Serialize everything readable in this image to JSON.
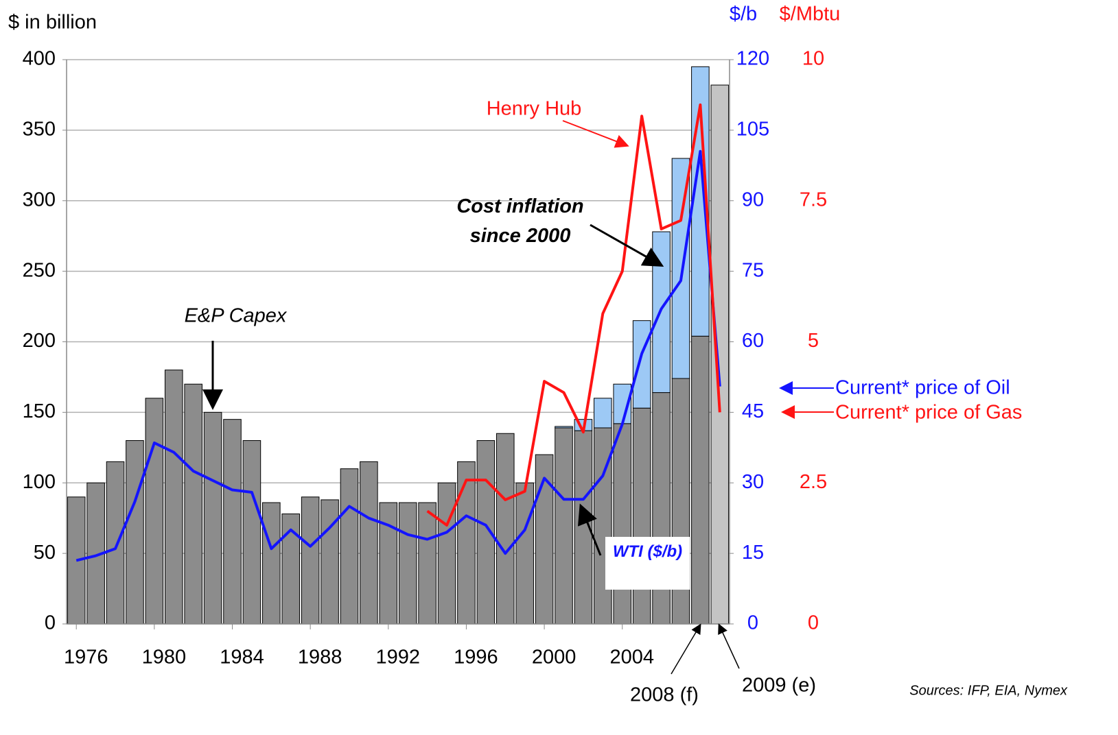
{
  "chart_data": {
    "type": "combo",
    "y_label": "$ in billion",
    "y2_label": "$/b",
    "y3_label": "$/Mbtu",
    "x": [
      1976,
      1977,
      1978,
      1979,
      1980,
      1981,
      1982,
      1983,
      1984,
      1985,
      1986,
      1987,
      1988,
      1989,
      1990,
      1991,
      1992,
      1993,
      1994,
      1995,
      1996,
      1997,
      1998,
      1999,
      2000,
      2001,
      2002,
      2003,
      2004,
      2005,
      2006,
      2007,
      2008,
      2009
    ],
    "xlim": [
      1975.5,
      2009.5
    ],
    "xticks": [
      1976,
      1980,
      1984,
      1988,
      1992,
      1996,
      2000,
      2004
    ],
    "ylim": [
      0,
      400
    ],
    "yticks": [
      0,
      50,
      100,
      150,
      200,
      250,
      300,
      350,
      400
    ],
    "y2lim": [
      0,
      120
    ],
    "y2ticks": [
      0,
      15,
      30,
      45,
      60,
      75,
      90,
      105,
      120
    ],
    "y3lim": [
      0,
      10
    ],
    "y3ticks": [
      0,
      2.5,
      5,
      7.5,
      10
    ],
    "grid": true,
    "series": [
      {
        "name": "E&P Capex",
        "kind": "bar",
        "color": "#8c8c8c",
        "colors": [
          "#8c8c8c",
          "#8c8c8c",
          "#8c8c8c",
          "#8c8c8c",
          "#8c8c8c",
          "#8c8c8c",
          "#8c8c8c",
          "#8c8c8c",
          "#8c8c8c",
          "#8c8c8c",
          "#8c8c8c",
          "#8c8c8c",
          "#8c8c8c",
          "#8c8c8c",
          "#8c8c8c",
          "#8c8c8c",
          "#8c8c8c",
          "#8c8c8c",
          "#8c8c8c",
          "#8c8c8c",
          "#8c8c8c",
          "#8c8c8c",
          "#8c8c8c",
          "#8c8c8c",
          "#8c8c8c",
          "#8c8c8c",
          "#8c8c8c",
          "#8c8c8c",
          "#8c8c8c",
          "#8c8c8c",
          "#8c8c8c",
          "#8c8c8c",
          "#8c8c8c",
          "#c4c4c4"
        ],
        "values": [
          90,
          100,
          115,
          130,
          160,
          180,
          170,
          150,
          145,
          130,
          86,
          78,
          90,
          88,
          110,
          115,
          86,
          86,
          86,
          100,
          115,
          130,
          135,
          100,
          120,
          139,
          137,
          139,
          142,
          153,
          164,
          174,
          204,
          382
        ]
      },
      {
        "name": "Cost inflation since 2000",
        "kind": "bar",
        "stacked": true,
        "color": "#9dc9f5",
        "values": [
          null,
          null,
          null,
          null,
          null,
          null,
          null,
          null,
          null,
          null,
          null,
          null,
          null,
          null,
          null,
          null,
          null,
          null,
          null,
          null,
          null,
          null,
          null,
          null,
          null,
          1,
          8,
          21,
          28,
          62,
          114,
          156,
          191,
          null
        ]
      },
      {
        "name": "WTI ($/b)",
        "kind": "line",
        "axis": "y2",
        "color": "#1414ff",
        "values": [
          13.5,
          14.5,
          16,
          26,
          38.5,
          36.5,
          32.5,
          30.5,
          28.5,
          28,
          16,
          20,
          16.5,
          20.5,
          25,
          22.5,
          21,
          19,
          18,
          19.5,
          23,
          21,
          15,
          20,
          31,
          26.5,
          26.5,
          31.5,
          42.5,
          57.5,
          67,
          73,
          100.5,
          50.5
        ]
      },
      {
        "name": "Henry Hub",
        "kind": "line",
        "axis": "y3",
        "color": "#ff1414",
        "values": [
          null,
          null,
          null,
          null,
          null,
          null,
          null,
          null,
          null,
          null,
          null,
          null,
          null,
          null,
          null,
          null,
          null,
          null,
          2.0,
          1.75,
          2.55,
          2.55,
          2.2,
          2.35,
          4.3,
          4.1,
          3.4,
          5.5,
          6.25,
          9.0,
          7.0,
          7.15,
          9.2,
          3.75
        ]
      }
    ],
    "annotations": [
      "Current* price of Oil",
      "Current* price of Gas",
      "2008 (f)",
      "2009 (e)"
    ],
    "source": "Sources: IFP, EIA, Nymex"
  }
}
